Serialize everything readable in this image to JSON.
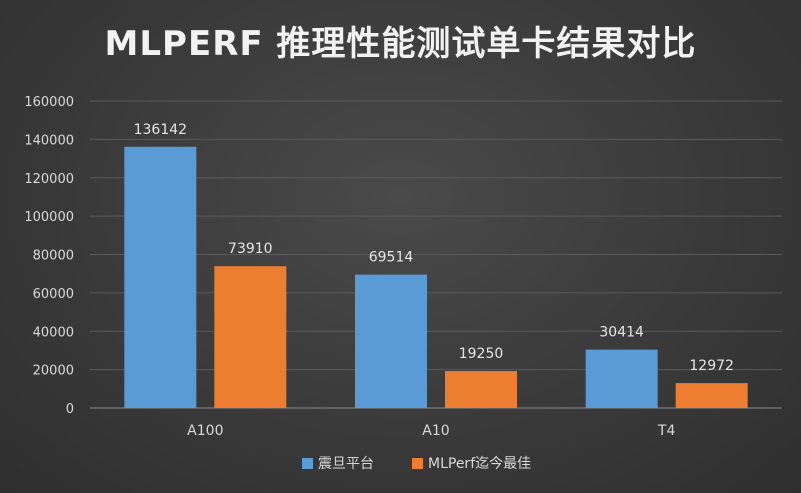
{
  "chart_data": {
    "type": "bar",
    "title": "MLPERF 推理性能测试单卡结果对比",
    "categories": [
      "A100",
      "A10",
      "T4"
    ],
    "series": [
      {
        "name": "震旦平台",
        "values": [
          136142,
          69514,
          30414
        ],
        "color": "#5b9bd5"
      },
      {
        "name": "MLPerf迄今最佳",
        "values": [
          73910,
          19250,
          12972
        ],
        "color": "#ed7d31"
      }
    ],
    "ylim": [
      0,
      160000
    ],
    "yticks": [
      0,
      20000,
      40000,
      60000,
      80000,
      100000,
      120000,
      140000,
      160000
    ],
    "grid": true,
    "legend": "bottom"
  }
}
